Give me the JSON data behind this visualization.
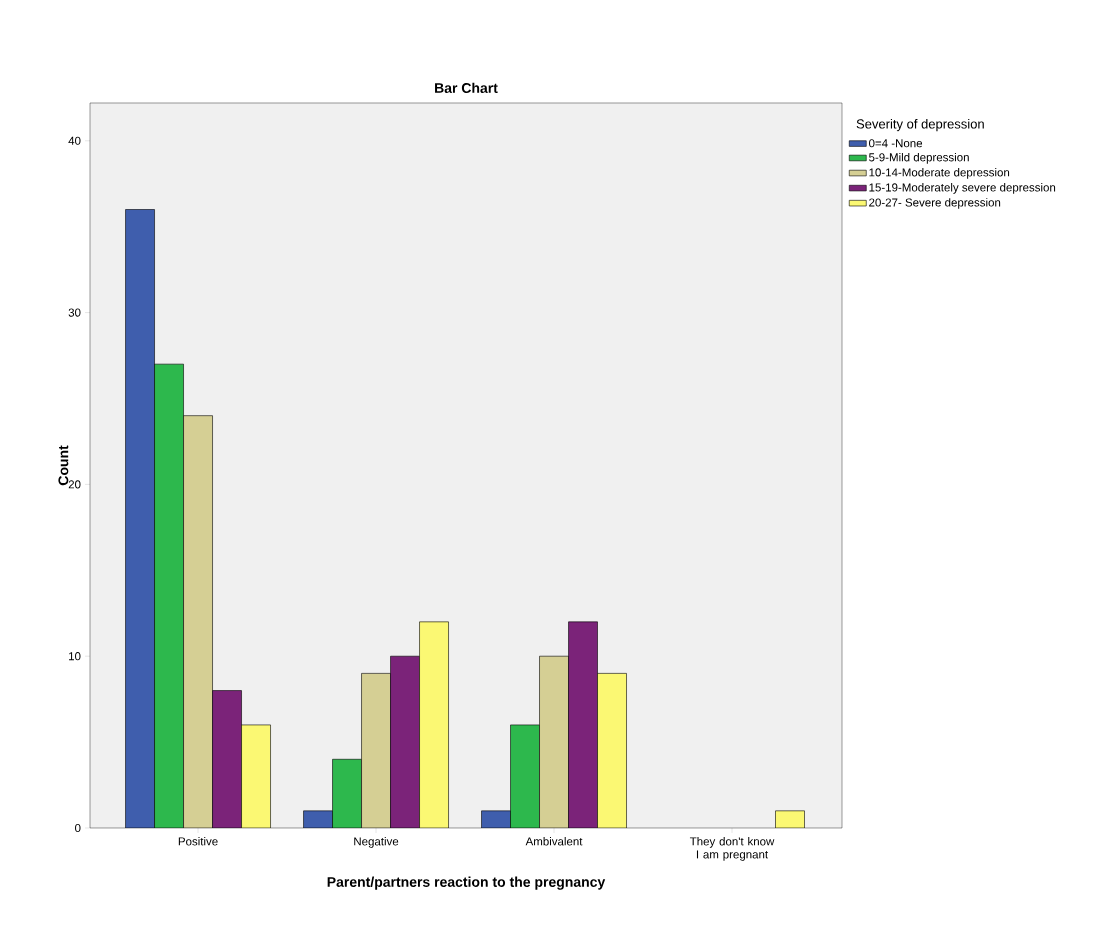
{
  "chart_data": {
    "type": "bar",
    "title": "Bar Chart",
    "xlabel": "Parent/partners reaction to the pregnancy",
    "ylabel": "Count",
    "legend_title": "Severity of depression",
    "categories": [
      "Positive",
      "Negative",
      "Ambivalent",
      "They don't know I am pregnant"
    ],
    "series": [
      {
        "name": "0=4 -None",
        "color": "#3f5ead",
        "values": [
          36,
          1,
          1,
          null
        ]
      },
      {
        "name": "5-9-Mild depression",
        "color": "#2db84d",
        "values": [
          27,
          4,
          6,
          null
        ]
      },
      {
        "name": "10-14-Moderate depression",
        "color": "#d5cf94",
        "values": [
          24,
          9,
          10,
          null
        ]
      },
      {
        "name": "15-19-Moderately severe depression",
        "color": "#7b2379",
        "values": [
          8,
          10,
          12,
          null
        ]
      },
      {
        "name": "20-27- Severe depression",
        "color": "#fbf873",
        "values": [
          6,
          12,
          9,
          1
        ]
      }
    ],
    "ylim": [
      0,
      42.2
    ],
    "yticks": [
      0,
      10,
      20,
      30,
      40
    ],
    "grid": false,
    "legend": "top right"
  }
}
